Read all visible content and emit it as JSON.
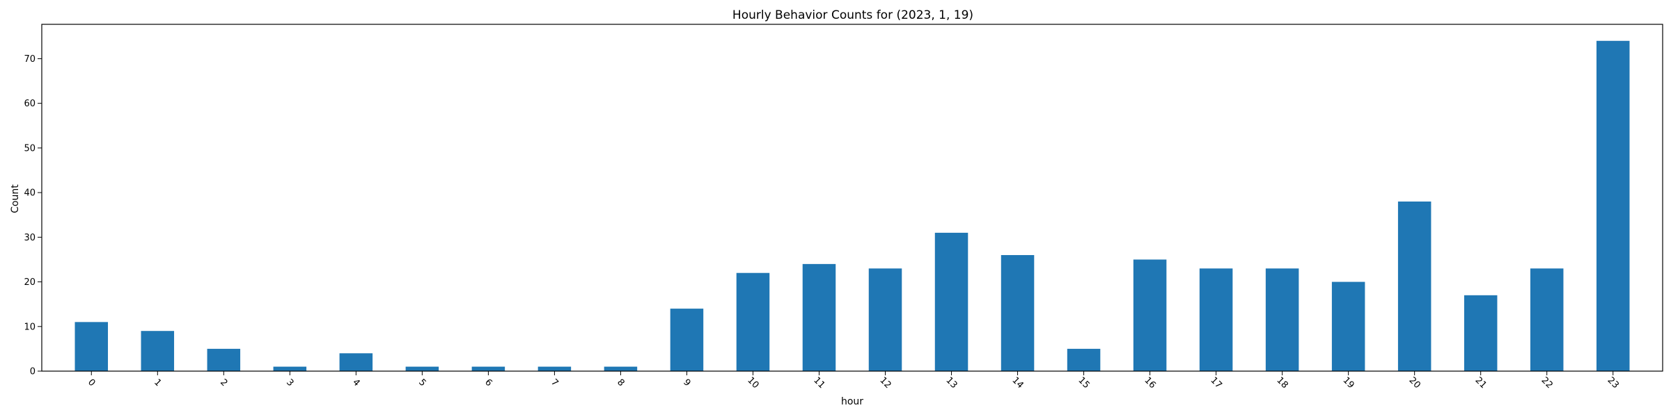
{
  "chart_data": {
    "type": "bar",
    "title": "Hourly Behavior Counts for (2023, 1, 19)",
    "xlabel": "hour",
    "ylabel": "Count",
    "categories": [
      "0",
      "1",
      "2",
      "3",
      "4",
      "5",
      "6",
      "7",
      "8",
      "9",
      "10",
      "11",
      "12",
      "13",
      "14",
      "15",
      "16",
      "17",
      "18",
      "19",
      "20",
      "21",
      "22",
      "23"
    ],
    "values": [
      11,
      9,
      5,
      1,
      4,
      1,
      1,
      1,
      1,
      14,
      22,
      24,
      23,
      31,
      26,
      5,
      25,
      23,
      23,
      20,
      38,
      17,
      23,
      74
    ],
    "yticks": [
      0,
      10,
      20,
      30,
      40,
      50,
      60,
      70
    ],
    "ylim": [
      0,
      77.7
    ],
    "grid": false,
    "bar_color": "#1f77b4",
    "xtick_rotation": 45
  }
}
